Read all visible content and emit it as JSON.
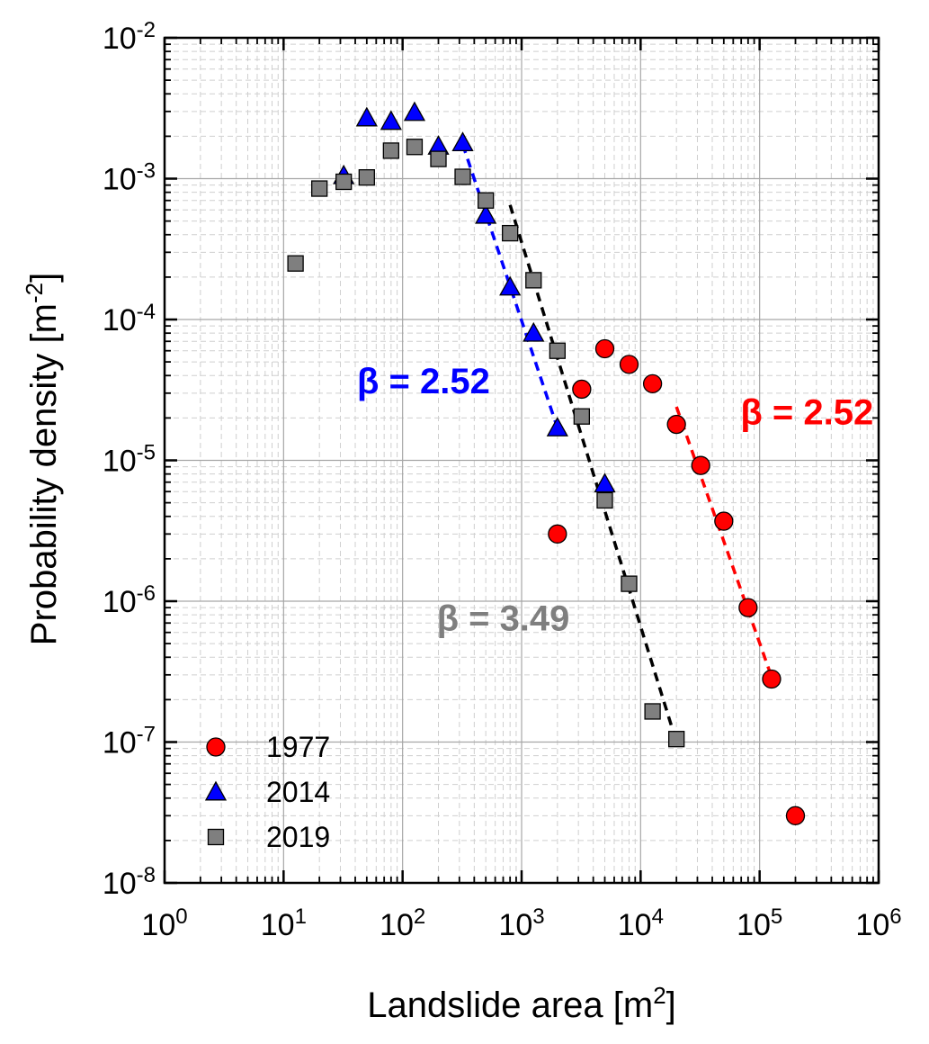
{
  "chart_data": {
    "type": "scatter",
    "xlabel": "Landslide area [m",
    "xlabel_sup": "2",
    "xlabel_tail": "]",
    "ylabel": "Probability density [m",
    "ylabel_sup": "-2",
    "ylabel_tail": "]",
    "x_scale": "log",
    "y_scale": "log",
    "xlim": [
      1,
      1000000
    ],
    "ylim": [
      1e-08,
      0.01
    ],
    "x_ticks": [
      {
        "value": 1,
        "base": "10",
        "exp": "0"
      },
      {
        "value": 10,
        "base": "10",
        "exp": "1"
      },
      {
        "value": 100,
        "base": "10",
        "exp": "2"
      },
      {
        "value": 1000,
        "base": "10",
        "exp": "3"
      },
      {
        "value": 10000,
        "base": "10",
        "exp": "4"
      },
      {
        "value": 100000,
        "base": "10",
        "exp": "5"
      },
      {
        "value": 1000000,
        "base": "10",
        "exp": "6"
      }
    ],
    "y_ticks": [
      {
        "value": 1e-08,
        "base": "10",
        "exp": "-8"
      },
      {
        "value": 1e-07,
        "base": "10",
        "exp": "-7"
      },
      {
        "value": 1e-06,
        "base": "10",
        "exp": "-6"
      },
      {
        "value": 1e-05,
        "base": "10",
        "exp": "-5"
      },
      {
        "value": 0.0001,
        "base": "10",
        "exp": "-4"
      },
      {
        "value": 0.001,
        "base": "10",
        "exp": "-3"
      },
      {
        "value": 0.01,
        "base": "10",
        "exp": "-2"
      }
    ],
    "grid": true,
    "legend_position": "bottom-left",
    "series": [
      {
        "name": "1977",
        "marker": "circle",
        "color": "#ff0000",
        "points": [
          [
            2000,
            3e-06
          ],
          [
            3200,
            3.2e-05
          ],
          [
            5000,
            6.2e-05
          ],
          [
            8000,
            4.8e-05
          ],
          [
            12600,
            3.5e-05
          ],
          [
            20000,
            1.8e-05
          ],
          [
            32000,
            9.2e-06
          ],
          [
            50000,
            3.7e-06
          ],
          [
            80000,
            9e-07
          ],
          [
            126000,
            2.8e-07
          ],
          [
            200000,
            3e-08
          ]
        ]
      },
      {
        "name": "2014",
        "marker": "triangle",
        "color": "#0000ff",
        "points": [
          [
            32,
            0.00105
          ],
          [
            50,
            0.0027
          ],
          [
            80,
            0.00255
          ],
          [
            126,
            0.00295
          ],
          [
            200,
            0.0017
          ],
          [
            320,
            0.0018
          ],
          [
            500,
            0.00055
          ],
          [
            800,
            0.00017
          ],
          [
            1260,
            8e-05
          ],
          [
            2000,
            1.7e-05
          ],
          [
            5000,
            6.8e-06
          ]
        ]
      },
      {
        "name": "2019",
        "marker": "square",
        "color": "#7f7f7f",
        "points": [
          [
            12.6,
            0.00025
          ],
          [
            20,
            0.00085
          ],
          [
            32,
            0.00095
          ],
          [
            50,
            0.00102
          ],
          [
            80,
            0.00158
          ],
          [
            126,
            0.00168
          ],
          [
            200,
            0.00138
          ],
          [
            320,
            0.00103
          ],
          [
            500,
            0.0007
          ],
          [
            800,
            0.00041
          ],
          [
            1260,
            0.00019
          ],
          [
            2000,
            6e-05
          ],
          [
            3200,
            2.05e-05
          ],
          [
            5000,
            5.2e-06
          ],
          [
            8000,
            1.33e-06
          ],
          [
            12600,
            1.65e-07
          ],
          [
            20000,
            1.05e-07
          ]
        ]
      }
    ],
    "fits": [
      {
        "color": "#0000ff",
        "points": [
          [
            320,
            0.00175
          ],
          [
            2000,
            1.7e-05
          ]
        ]
      },
      {
        "color": "#000000",
        "points": [
          [
            800,
            0.00065
          ],
          [
            20000,
            1e-07
          ]
        ]
      },
      {
        "color": "#ff0000",
        "points": [
          [
            20000,
            2.4e-05
          ],
          [
            126000,
            2.9e-07
          ]
        ]
      }
    ],
    "annotations": [
      {
        "text": "β = 2.52",
        "color": "#0000ff",
        "x": 150,
        "y": 3e-05
      },
      {
        "text": "β = 2.52",
        "color": "#ff0000",
        "x": 250000,
        "y": 1.8e-05
      },
      {
        "text": "β = 3.49",
        "color": "#7f7f7f",
        "x": 700,
        "y": 6.2e-07
      }
    ]
  }
}
